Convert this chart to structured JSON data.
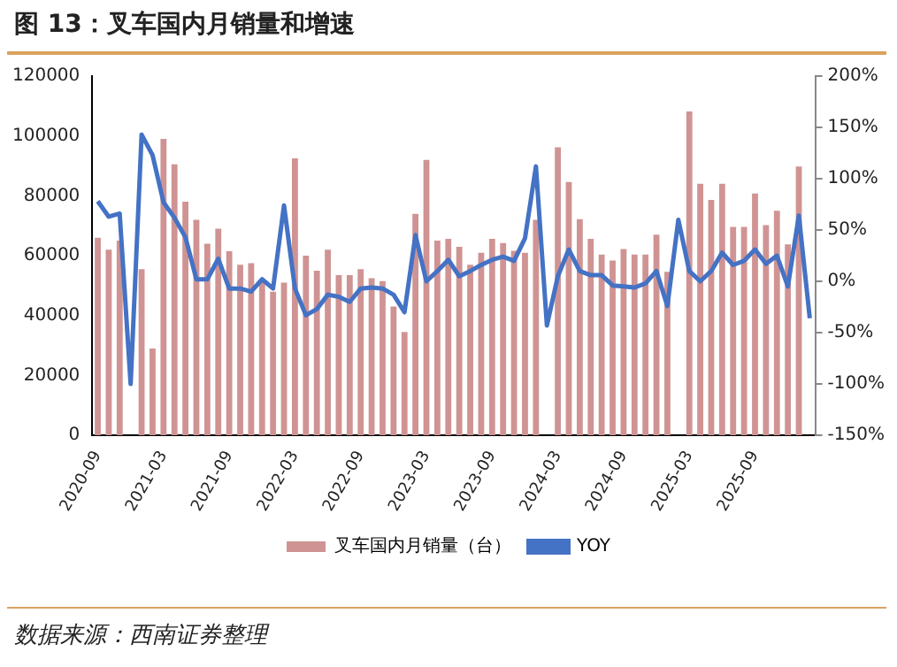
{
  "chart_data": {
    "type": "bar",
    "title": "图 13：叉车国内月销量和增速",
    "categories": [
      "2020-09",
      null,
      null,
      null,
      null,
      null,
      "2021-03",
      null,
      null,
      null,
      null,
      null,
      "2021-09",
      null,
      null,
      null,
      null,
      null,
      "2022-03",
      null,
      null,
      null,
      null,
      null,
      "2022-09",
      null,
      null,
      null,
      null,
      null,
      "2023-03",
      null,
      null,
      null,
      null,
      null,
      "2023-09",
      null,
      null,
      null,
      null,
      null,
      "2024-03",
      null,
      null,
      null,
      null,
      null,
      "2024-09",
      null,
      null,
      null,
      null,
      null,
      "2025-03",
      null,
      null,
      null,
      null,
      null,
      "2025-09",
      null,
      null,
      null,
      null,
      null
    ],
    "series": [
      {
        "name": "叉车国内月销量（台）",
        "color": "#d09393",
        "values": [
          66000,
          62000,
          65000,
          null,
          55500,
          29000,
          99000,
          90500,
          78000,
          72000,
          64000,
          69000,
          61500,
          57000,
          57500,
          52000,
          48000,
          51000,
          92500,
          60000,
          55000,
          62000,
          53500,
          53500,
          55500,
          52500,
          51500,
          43000,
          34500,
          74000,
          92000,
          65000,
          65600,
          63000,
          57000,
          61000,
          65600,
          64200,
          61600,
          61000,
          72000,
          null,
          96200,
          84600,
          72200,
          65600,
          60400,
          58400,
          62200,
          60400,
          60400,
          67000,
          54600,
          null,
          108200,
          84000,
          78600,
          84000,
          69600,
          69600,
          80800,
          70200,
          75000,
          63800,
          89800,
          null
        ]
      },
      {
        "name": "YOY",
        "type": "line",
        "axis": "y2",
        "color": "#4472c4",
        "values": [
          78,
          63,
          66,
          -100,
          143,
          123,
          77,
          62,
          43,
          2,
          2,
          22,
          -7,
          -7,
          -10,
          2,
          -7,
          74,
          -7,
          -33,
          -27,
          -13,
          -15,
          -20,
          -7,
          -6,
          -7,
          -13,
          -30,
          45,
          0,
          10,
          21,
          5,
          10,
          16,
          21,
          24,
          20,
          42,
          112,
          -43,
          5,
          31,
          10,
          6,
          6,
          -4,
          -5,
          -6,
          -2,
          10,
          -24,
          60,
          10,
          0,
          10,
          28,
          16,
          20,
          31,
          17,
          25,
          -5,
          64,
          -36
        ]
      }
    ],
    "ylim": [
      0,
      120000
    ],
    "yticks": [
      0,
      20000,
      40000,
      60000,
      80000,
      100000,
      120000
    ],
    "y2lim": [
      -150,
      200
    ],
    "y2ticks": [
      {
        "value": -150,
        "label": "-150%"
      },
      {
        "value": -100,
        "label": "-100%"
      },
      {
        "value": -50,
        "label": "-50%"
      },
      {
        "value": 0,
        "label": "0%"
      },
      {
        "value": 50,
        "label": "50%"
      },
      {
        "value": 100,
        "label": "100%"
      },
      {
        "value": 150,
        "label": "150%"
      },
      {
        "value": 200,
        "label": "200%"
      }
    ],
    "grid": false,
    "legend": "bottom",
    "marker": "none",
    "line_style": "solid",
    "annotations": [
      "数据来源：西南证券整理"
    ]
  }
}
